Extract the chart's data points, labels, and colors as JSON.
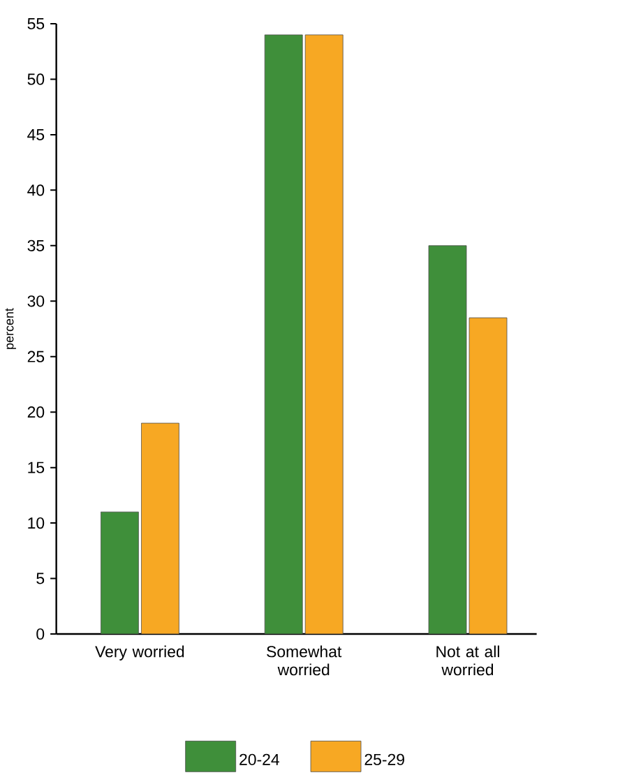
{
  "chart_data": {
    "type": "bar",
    "ylabel": "percent",
    "categories": [
      "Very worried",
      "Somewhat worried",
      "Not at all worried"
    ],
    "series": [
      {
        "name": "20-24",
        "color": "#3f8f3a",
        "values": [
          11,
          54,
          35
        ]
      },
      {
        "name": "25-29",
        "color": "#f7a823",
        "values": [
          19,
          54,
          28.5
        ]
      }
    ],
    "ylim": [
      0,
      55
    ],
    "yticks": [
      0,
      5,
      10,
      15,
      20,
      25,
      30,
      35,
      40,
      45,
      50,
      55
    ],
    "grid": false,
    "legend": "bottom"
  }
}
